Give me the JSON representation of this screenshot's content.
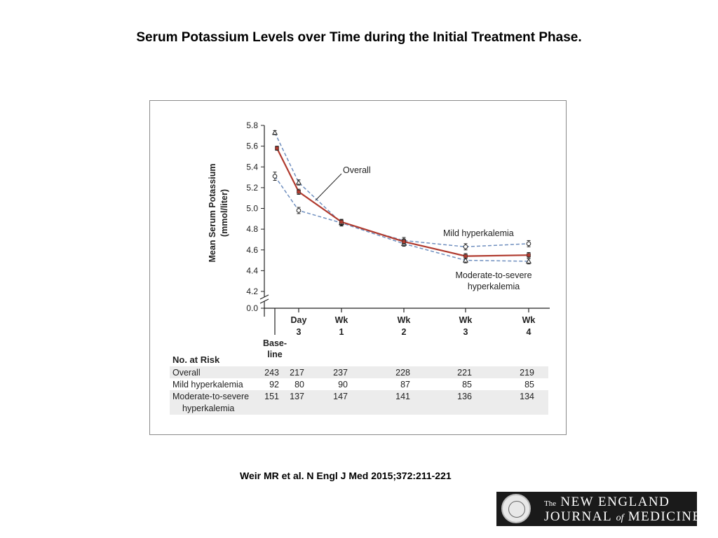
{
  "slide": {
    "title": "Serum Potassium Levels over Time during the Initial Treatment Phase.",
    "citation": "Weir MR et al. N Engl J Med 2015;372:211-221"
  },
  "logo": {
    "line1_prefix": "The",
    "line1_main": "NEW ENGLAND",
    "line2_a": "JOURNAL",
    "line2_of": "of",
    "line2_b": "MEDICINE"
  },
  "chart_data": {
    "type": "line",
    "ylabel_line1": "Mean Serum Potassium",
    "ylabel_line2": "(mmol/liter)",
    "ylim": [
      4.2,
      5.8
    ],
    "yticks": [
      "5.8",
      "5.6",
      "5.4",
      "5.2",
      "5.0",
      "4.8",
      "4.6",
      "4.4",
      "4.2",
      "0.0"
    ],
    "ytick_values": [
      5.8,
      5.6,
      5.4,
      5.2,
      5.0,
      4.8,
      4.6,
      4.4,
      4.2,
      0.0
    ],
    "axis_break": true,
    "categories": [
      {
        "line1": "Base-",
        "line2": "line"
      },
      {
        "line1": "Day",
        "line2": "3"
      },
      {
        "line1": "Wk",
        "line2": "1"
      },
      {
        "line1": "Wk",
        "line2": "2"
      },
      {
        "line1": "Wk",
        "line2": "3"
      },
      {
        "line1": "Wk",
        "line2": "4"
      }
    ],
    "series": [
      {
        "key": "overall",
        "values": [
          5.58,
          5.16,
          4.87,
          4.68,
          4.54,
          4.55
        ],
        "errors": [
          0.02,
          0.025,
          0.025,
          0.025,
          0.025,
          0.025
        ],
        "color": "#b03a2e",
        "style": "solid",
        "marker": "square"
      },
      {
        "key": "mild",
        "values": [
          5.31,
          4.98,
          4.86,
          4.69,
          4.63,
          4.66
        ],
        "errors": [
          0.04,
          0.03,
          0.03,
          0.03,
          0.03,
          0.03
        ],
        "color": "#6f8fbf",
        "style": "dashed",
        "marker": "circle"
      },
      {
        "key": "moderate",
        "values": [
          5.73,
          5.25,
          4.86,
          4.66,
          4.5,
          4.49
        ],
        "errors": [
          0.02,
          0.025,
          0.025,
          0.025,
          0.025,
          0.025
        ],
        "color": "#6f8fbf",
        "style": "dashed",
        "marker": "triangle"
      }
    ],
    "annotations": {
      "overall": "Overall",
      "mild": "Mild hyperkalemia",
      "moderate_line1": "Moderate-to-severe",
      "moderate_line2": "hyperkalemia"
    },
    "risk_table": {
      "title": "No. at Risk",
      "rows": [
        {
          "label_line1": "Overall",
          "label_line2": "",
          "values": [
            "243",
            "217",
            "237",
            "228",
            "221",
            "219"
          ]
        },
        {
          "label_line1": "Mild hyperkalemia",
          "label_line2": "",
          "values": [
            "92",
            "80",
            "90",
            "87",
            "85",
            "85"
          ]
        },
        {
          "label_line1": "Moderate-to-severe",
          "label_line2": "hyperkalemia",
          "values": [
            "151",
            "137",
            "147",
            "141",
            "136",
            "134"
          ]
        }
      ]
    }
  }
}
